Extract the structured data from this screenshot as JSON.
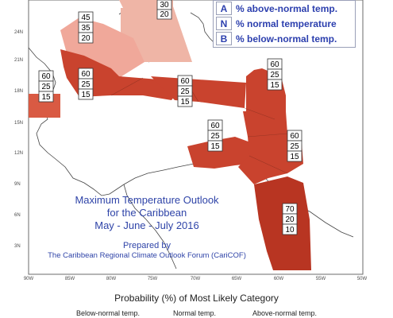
{
  "map": {
    "title": "Maximum Temperature Outlook",
    "subtitle": "for the Caribbean",
    "period": "May - June - July 2016",
    "prepared_by_1": "Prepared by",
    "prepared_by_2": "The Caribbean Regional Climate Outlook Forum (CariCOF)",
    "lat_labels": [
      "24N",
      "21N",
      "18N",
      "15N",
      "12N",
      "9N",
      "6N",
      "3N"
    ],
    "lon_labels": [
      "90W",
      "85W",
      "80W",
      "75W",
      "70W",
      "65W",
      "60W",
      "55W",
      "50W"
    ],
    "colors": {
      "above_dark": "#c9432e",
      "above_mid": "#d95a43",
      "above_light": "#f0a89a",
      "above_lighter": "#efb5a6",
      "above_deep": "#b83522",
      "land_line": "#444444",
      "axis_text": "#4a4a4a"
    },
    "regions": [
      {
        "id": "bahamas-top",
        "values": [
          "30",
          "20"
        ]
      },
      {
        "id": "cuba-west",
        "values": [
          "45",
          "35",
          "20"
        ]
      },
      {
        "id": "belize",
        "values": [
          "60",
          "25",
          "15"
        ]
      },
      {
        "id": "greater-antilles-west",
        "values": [
          "60",
          "25",
          "15"
        ]
      },
      {
        "id": "hispaniola",
        "values": [
          "60",
          "25",
          "15"
        ]
      },
      {
        "id": "lesser-antilles-north",
        "values": [
          "60",
          "25",
          "15"
        ]
      },
      {
        "id": "abc-islands",
        "values": [
          "60",
          "25",
          "15"
        ]
      },
      {
        "id": "lesser-antilles-south",
        "values": [
          "60",
          "25",
          "15"
        ]
      },
      {
        "id": "guianas",
        "values": [
          "70",
          "20",
          "10"
        ]
      }
    ]
  },
  "legend": {
    "rows": [
      {
        "key": "A",
        "label": "% above-normal temp."
      },
      {
        "key": "N",
        "label": "% normal temperature"
      },
      {
        "key": "B",
        "label": "% below-normal temp."
      }
    ]
  },
  "caption": {
    "main": "Probability (%) of Most Likely Category",
    "categories": [
      "Below-normal temp.",
      "Normal temp.",
      "Above-normal temp."
    ]
  }
}
